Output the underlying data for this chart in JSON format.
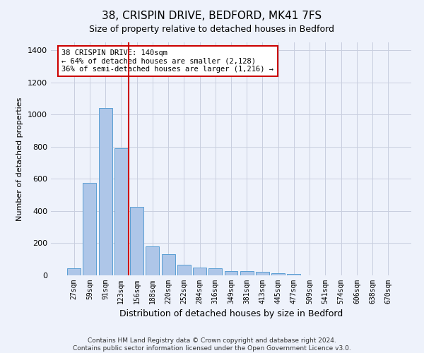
{
  "title": "38, CRISPIN DRIVE, BEDFORD, MK41 7FS",
  "subtitle": "Size of property relative to detached houses in Bedford",
  "xlabel": "Distribution of detached houses by size in Bedford",
  "ylabel": "Number of detached properties",
  "categories": [
    "27sqm",
    "59sqm",
    "91sqm",
    "123sqm",
    "156sqm",
    "188sqm",
    "220sqm",
    "252sqm",
    "284sqm",
    "316sqm",
    "349sqm",
    "381sqm",
    "413sqm",
    "445sqm",
    "477sqm",
    "509sqm",
    "541sqm",
    "574sqm",
    "606sqm",
    "638sqm",
    "670sqm"
  ],
  "values": [
    45,
    575,
    1040,
    790,
    425,
    180,
    130,
    65,
    50,
    45,
    27,
    25,
    20,
    15,
    10,
    0,
    0,
    0,
    0,
    0,
    0
  ],
  "bar_color": "#aec6e8",
  "bar_edge_color": "#5a9fd4",
  "vline_x": 3.5,
  "vline_color": "#cc0000",
  "annotation_line1": "38 CRISPIN DRIVE: 140sqm",
  "annotation_line2": "← 64% of detached houses are smaller (2,128)",
  "annotation_line3": "36% of semi-detached houses are larger (1,216) →",
  "annotation_border_color": "#cc0000",
  "ylim": [
    0,
    1450
  ],
  "yticks": [
    0,
    200,
    400,
    600,
    800,
    1000,
    1200,
    1400
  ],
  "footer1": "Contains HM Land Registry data © Crown copyright and database right 2024.",
  "footer2": "Contains public sector information licensed under the Open Government Licence v3.0.",
  "bg_color": "#eef2fb",
  "plot_bg_color": "#eef2fb",
  "grid_color": "#c8cedf"
}
